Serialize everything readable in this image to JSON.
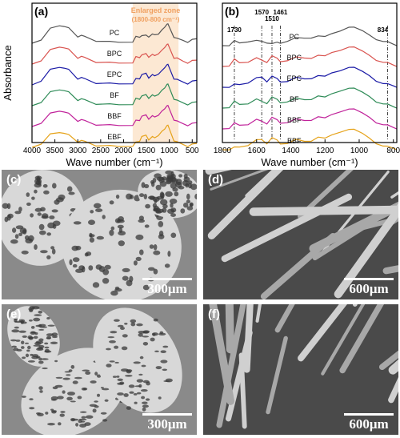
{
  "chart_data": [
    {
      "type": "line",
      "panel_label": "(a)",
      "ylabel": "Absorbance",
      "xlabel": "Wave number (cm⁻¹)",
      "x_ticks": [
        4000,
        3500,
        3000,
        2500,
        2000,
        1500,
        1000,
        500
      ],
      "xlim": [
        4000,
        400
      ],
      "x_reversed": true,
      "annotation_title": "Enlarged zone",
      "annotation_range": "(1800-800 cm⁻¹)",
      "highlight_range": [
        1800,
        800
      ],
      "series": [
        {
          "name": "PC",
          "color": "#555555",
          "x": [
            4000,
            3800,
            3600,
            3400,
            3300,
            3200,
            3000,
            2920,
            2850,
            2600,
            2300,
            2100,
            1800,
            1730,
            1650,
            1600,
            1510,
            1450,
            1370,
            1320,
            1240,
            1160,
            1100,
            1050,
            1030,
            900,
            830,
            700,
            600,
            500,
            400
          ],
          "y": [
            0.06,
            0.2,
            0.58,
            0.72,
            0.68,
            0.6,
            0.32,
            0.34,
            0.3,
            0.16,
            0.1,
            0.1,
            0.12,
            0.28,
            0.3,
            0.34,
            0.33,
            0.32,
            0.38,
            0.36,
            0.42,
            0.52,
            0.66,
            0.78,
            0.74,
            0.3,
            0.24,
            0.14,
            0.12,
            0.18,
            0.22
          ]
        },
        {
          "name": "BPC",
          "color": "#d9534f",
          "x": [
            4000,
            3800,
            3600,
            3400,
            3300,
            3200,
            3000,
            2920,
            2850,
            2600,
            2300,
            2100,
            1800,
            1730,
            1650,
            1600,
            1510,
            1450,
            1370,
            1320,
            1240,
            1160,
            1100,
            1050,
            1030,
            900,
            830,
            700,
            600,
            500,
            400
          ],
          "y": [
            0.06,
            0.2,
            0.56,
            0.7,
            0.66,
            0.58,
            0.3,
            0.33,
            0.29,
            0.15,
            0.1,
            0.1,
            0.12,
            0.3,
            0.32,
            0.4,
            0.42,
            0.34,
            0.4,
            0.36,
            0.46,
            0.54,
            0.68,
            0.8,
            0.76,
            0.3,
            0.28,
            0.14,
            0.12,
            0.17,
            0.2
          ]
        },
        {
          "name": "EPC",
          "color": "#1a1aa6",
          "x": [
            4000,
            3800,
            3600,
            3400,
            3300,
            3200,
            3000,
            2920,
            2850,
            2600,
            2300,
            2100,
            1800,
            1730,
            1650,
            1600,
            1510,
            1450,
            1370,
            1320,
            1240,
            1160,
            1100,
            1050,
            1030,
            900,
            830,
            700,
            600,
            500,
            400
          ],
          "y": [
            0.06,
            0.22,
            0.6,
            0.72,
            0.68,
            0.6,
            0.3,
            0.32,
            0.28,
            0.14,
            0.1,
            0.1,
            0.12,
            0.26,
            0.3,
            0.44,
            0.46,
            0.34,
            0.42,
            0.38,
            0.48,
            0.56,
            0.7,
            0.82,
            0.78,
            0.3,
            0.26,
            0.14,
            0.12,
            0.18,
            0.22
          ]
        },
        {
          "name": "BF",
          "color": "#2e8b57",
          "x": [
            4000,
            3800,
            3600,
            3400,
            3300,
            3200,
            3000,
            2920,
            2850,
            2600,
            2300,
            2100,
            1800,
            1730,
            1650,
            1600,
            1510,
            1450,
            1370,
            1320,
            1240,
            1160,
            1100,
            1050,
            1030,
            900,
            830,
            700,
            600,
            500,
            400
          ],
          "y": [
            0.06,
            0.2,
            0.54,
            0.66,
            0.62,
            0.54,
            0.28,
            0.3,
            0.27,
            0.14,
            0.1,
            0.1,
            0.12,
            0.3,
            0.32,
            0.42,
            0.44,
            0.36,
            0.44,
            0.4,
            0.5,
            0.6,
            0.72,
            0.86,
            0.82,
            0.32,
            0.26,
            0.14,
            0.12,
            0.16,
            0.2
          ]
        },
        {
          "name": "BBF",
          "color": "#c0229a",
          "x": [
            4000,
            3800,
            3600,
            3400,
            3300,
            3200,
            3000,
            2920,
            2850,
            2600,
            2300,
            2100,
            1800,
            1730,
            1650,
            1600,
            1510,
            1450,
            1370,
            1320,
            1240,
            1160,
            1100,
            1050,
            1030,
            900,
            830,
            700,
            600,
            500,
            400
          ],
          "y": [
            0.06,
            0.2,
            0.52,
            0.64,
            0.6,
            0.52,
            0.28,
            0.3,
            0.27,
            0.14,
            0.1,
            0.1,
            0.12,
            0.26,
            0.3,
            0.44,
            0.46,
            0.36,
            0.44,
            0.4,
            0.5,
            0.6,
            0.72,
            0.84,
            0.8,
            0.32,
            0.26,
            0.14,
            0.12,
            0.16,
            0.2
          ]
        },
        {
          "name": "EBF",
          "color": "#e6a31a",
          "x": [
            4000,
            3800,
            3600,
            3400,
            3300,
            3200,
            3000,
            2920,
            2850,
            2600,
            2300,
            2100,
            1800,
            1730,
            1650,
            1600,
            1510,
            1450,
            1370,
            1320,
            1240,
            1160,
            1100,
            1050,
            1030,
            900,
            830,
            700,
            600,
            500,
            400
          ],
          "y": [
            0.06,
            0.2,
            0.52,
            0.62,
            0.58,
            0.5,
            0.28,
            0.3,
            0.27,
            0.14,
            0.1,
            0.1,
            0.12,
            0.22,
            0.3,
            0.46,
            0.48,
            0.36,
            0.44,
            0.4,
            0.52,
            0.62,
            0.74,
            0.88,
            0.84,
            0.32,
            0.26,
            0.14,
            0.12,
            0.16,
            0.2
          ]
        }
      ]
    },
    {
      "type": "line",
      "panel_label": "(b)",
      "xlabel": "Wave number (cm⁻¹)",
      "x_ticks": [
        1800,
        1600,
        1400,
        1200,
        1000,
        800
      ],
      "xlim": [
        1800,
        780
      ],
      "x_reversed": true,
      "peak_labels": [
        "1730",
        "1570",
        "1510",
        "1461",
        "834"
      ],
      "peak_positions": [
        1730,
        1570,
        1510,
        1461,
        834
      ],
      "series": [
        {
          "name": "PC",
          "color": "#555555",
          "x": [
            1800,
            1760,
            1730,
            1700,
            1650,
            1600,
            1570,
            1540,
            1510,
            1480,
            1461,
            1420,
            1370,
            1320,
            1280,
            1240,
            1200,
            1160,
            1110,
            1060,
            1030,
            980,
            940,
            900,
            860,
            834,
            800,
            780
          ],
          "y": [
            0.1,
            0.12,
            0.3,
            0.2,
            0.28,
            0.32,
            0.26,
            0.22,
            0.2,
            0.22,
            0.2,
            0.3,
            0.42,
            0.4,
            0.44,
            0.5,
            0.46,
            0.62,
            0.72,
            0.84,
            0.88,
            0.74,
            0.52,
            0.34,
            0.3,
            0.26,
            0.14,
            0.12
          ]
        },
        {
          "name": "BPC",
          "color": "#d9534f",
          "x": [
            1800,
            1760,
            1730,
            1700,
            1650,
            1600,
            1570,
            1540,
            1510,
            1480,
            1461,
            1420,
            1370,
            1320,
            1280,
            1240,
            1200,
            1160,
            1110,
            1060,
            1030,
            980,
            940,
            900,
            860,
            834,
            800,
            780
          ],
          "y": [
            0.1,
            0.14,
            0.4,
            0.24,
            0.3,
            0.46,
            0.34,
            0.28,
            0.56,
            0.42,
            0.3,
            0.36,
            0.48,
            0.44,
            0.46,
            0.56,
            0.52,
            0.7,
            0.78,
            0.88,
            0.92,
            0.76,
            0.54,
            0.34,
            0.3,
            0.26,
            0.14,
            0.12
          ]
        },
        {
          "name": "EPC",
          "color": "#1a1aa6",
          "x": [
            1800,
            1760,
            1730,
            1700,
            1650,
            1600,
            1570,
            1540,
            1510,
            1480,
            1461,
            1420,
            1370,
            1320,
            1280,
            1240,
            1200,
            1160,
            1110,
            1060,
            1030,
            980,
            940,
            900,
            860,
            834,
            800,
            780
          ],
          "y": [
            0.1,
            0.12,
            0.22,
            0.2,
            0.3,
            0.5,
            0.5,
            0.34,
            0.58,
            0.44,
            0.32,
            0.36,
            0.5,
            0.44,
            0.48,
            0.58,
            0.54,
            0.72,
            0.8,
            0.9,
            0.94,
            0.78,
            0.56,
            0.34,
            0.28,
            0.24,
            0.14,
            0.12
          ]
        },
        {
          "name": "BF",
          "color": "#2e8b57",
          "x": [
            1800,
            1760,
            1730,
            1700,
            1650,
            1600,
            1570,
            1540,
            1510,
            1480,
            1461,
            1420,
            1370,
            1320,
            1280,
            1240,
            1200,
            1160,
            1110,
            1060,
            1030,
            980,
            940,
            900,
            860,
            834,
            800,
            780
          ],
          "y": [
            0.1,
            0.14,
            0.38,
            0.24,
            0.3,
            0.48,
            0.36,
            0.3,
            0.58,
            0.44,
            0.32,
            0.38,
            0.5,
            0.44,
            0.48,
            0.6,
            0.54,
            0.72,
            0.82,
            0.9,
            0.94,
            0.78,
            0.56,
            0.34,
            0.3,
            0.26,
            0.14,
            0.12
          ]
        },
        {
          "name": "BBF",
          "color": "#c0229a",
          "x": [
            1800,
            1760,
            1730,
            1700,
            1650,
            1600,
            1570,
            1540,
            1510,
            1480,
            1461,
            1420,
            1370,
            1320,
            1280,
            1240,
            1200,
            1160,
            1110,
            1060,
            1030,
            980,
            940,
            900,
            860,
            834,
            800,
            780
          ],
          "y": [
            0.1,
            0.14,
            0.34,
            0.24,
            0.3,
            0.5,
            0.4,
            0.32,
            0.6,
            0.46,
            0.34,
            0.38,
            0.5,
            0.44,
            0.48,
            0.6,
            0.54,
            0.72,
            0.82,
            0.9,
            0.94,
            0.78,
            0.56,
            0.34,
            0.3,
            0.26,
            0.14,
            0.12
          ]
        },
        {
          "name": "EBF",
          "color": "#e6a31a",
          "x": [
            1800,
            1760,
            1730,
            1700,
            1650,
            1600,
            1570,
            1540,
            1510,
            1480,
            1461,
            1420,
            1370,
            1320,
            1280,
            1240,
            1200,
            1160,
            1110,
            1060,
            1030,
            980,
            940,
            900,
            860,
            834,
            800,
            780
          ],
          "y": [
            0.1,
            0.12,
            0.2,
            0.2,
            0.3,
            0.52,
            0.5,
            0.36,
            0.62,
            0.48,
            0.34,
            0.38,
            0.52,
            0.44,
            0.48,
            0.62,
            0.56,
            0.74,
            0.84,
            0.92,
            0.96,
            0.8,
            0.56,
            0.34,
            0.28,
            0.24,
            0.14,
            0.12
          ]
        }
      ]
    }
  ],
  "micrographs": [
    {
      "label": "(c)",
      "scale": "300μm",
      "kind": "honeycomb"
    },
    {
      "label": "(d)",
      "scale": "600μm",
      "kind": "fibers"
    },
    {
      "label": "(e)",
      "scale": "300μm",
      "kind": "flakes"
    },
    {
      "label": "(f)",
      "scale": "600μm",
      "kind": "fibers"
    }
  ]
}
